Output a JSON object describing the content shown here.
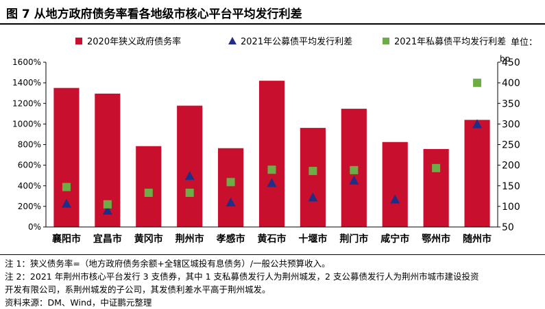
{
  "figure_title": "图 7  从地方政府债务率看各地级市核心平台平均发行利差",
  "unit_label": "单位：",
  "unit_bp": "bp",
  "notes": [
    "注 1：狭义债务率=（地方政府债务余额+全辖区城投有息债务）/一般公共预算收入。",
    "注 2：2021 年荆州市核心平台发行 3 支债券，其中 1 支私募债发行人为荆州城发，2 支公募债发行人为荆州市城市建设投资",
    "开发有限公司，系荆州城发的子公司，其发债利差水平高于荆州城发。",
    "资料来源：DM、Wind，中证鹏元整理"
  ],
  "colors": {
    "bar": "#C8102E",
    "public": "#1F2E86",
    "private": "#6CAE45"
  },
  "chart_data": {
    "type": "bar",
    "categories": [
      "襄阳市",
      "宜昌市",
      "黄冈市",
      "荆州市",
      "孝感市",
      "黄石市",
      "十堰市",
      "荆门市",
      "咸宁市",
      "鄂州市",
      "随州市"
    ],
    "left_axis": {
      "min": 0,
      "max": 1600,
      "step": 200,
      "suffix": "%"
    },
    "right_axis": {
      "min": 50,
      "max": 450,
      "step": 50
    },
    "legend_position": "top",
    "series": [
      {
        "name": "2020年狭义政府债务率",
        "kind": "bar",
        "axis": "left",
        "values": [
          1350,
          1295,
          785,
          1178,
          765,
          1420,
          962,
          1148,
          825,
          757,
          1040
        ]
      },
      {
        "name": "2021年公募债平均发行利差",
        "kind": "triangle",
        "axis": "right",
        "values": [
          107,
          90,
          null,
          174,
          110,
          157,
          122,
          163,
          117,
          null,
          300
        ]
      },
      {
        "name": "2021年私募债平均发行利差",
        "kind": "square",
        "axis": "right",
        "values": [
          147,
          105,
          133,
          133,
          159,
          189,
          186,
          188,
          null,
          193,
          400
        ]
      }
    ]
  }
}
